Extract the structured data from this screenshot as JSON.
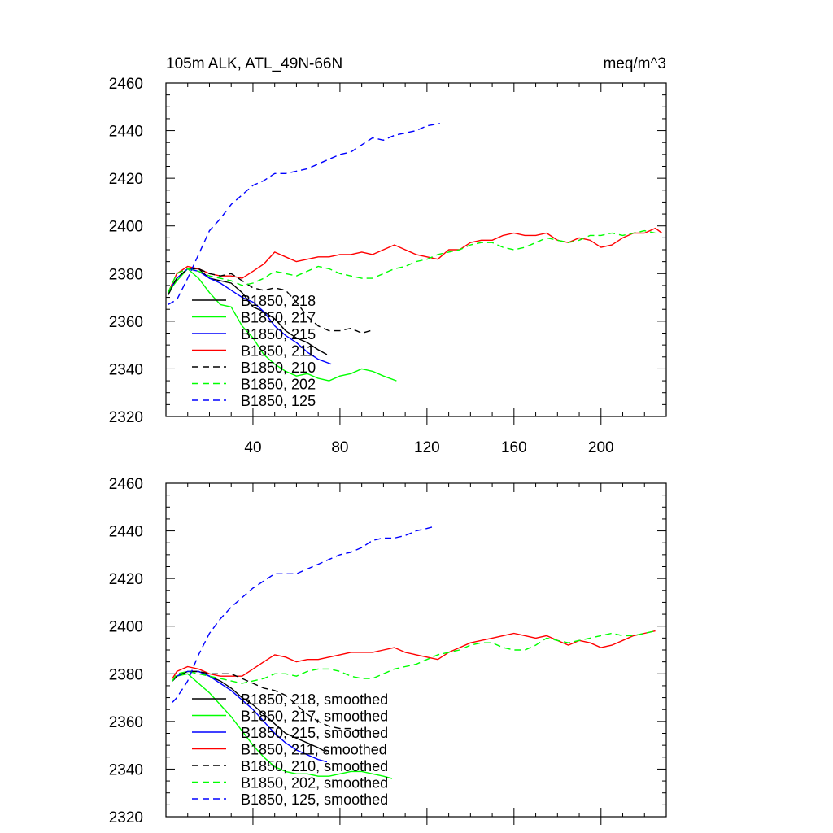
{
  "chart_data": [
    {
      "type": "line",
      "title": "105m ALK, ATL_49N-66N",
      "units": "meq/m^3",
      "xlabel": "",
      "ylabel": "",
      "xlim": [
        0,
        230
      ],
      "ylim": [
        2320,
        2460
      ],
      "xticks": [
        "40",
        "80",
        "120",
        "160",
        "200"
      ],
      "yticks": [
        "2460",
        "2440",
        "2420",
        "2400",
        "2380",
        "2360",
        "2340",
        "2320"
      ],
      "legend_position": "lower-left",
      "series": [
        {
          "name": "B1850, 218",
          "color": "#000000",
          "dash": "solid",
          "x": [
            1,
            5,
            10,
            15,
            20,
            25,
            30,
            35,
            40,
            45,
            50,
            55,
            60,
            65,
            70,
            74
          ],
          "y": [
            2371,
            2378,
            2382,
            2382,
            2378,
            2377,
            2376,
            2372,
            2366,
            2364,
            2361,
            2356,
            2353,
            2351,
            2348,
            2346
          ]
        },
        {
          "name": "B1850, 217",
          "color": "#00ff00",
          "dash": "solid",
          "x": [
            1,
            5,
            10,
            15,
            20,
            25,
            30,
            35,
            40,
            45,
            50,
            55,
            60,
            65,
            70,
            75,
            80,
            85,
            90,
            95,
            100,
            106
          ],
          "y": [
            2372,
            2377,
            2382,
            2378,
            2372,
            2367,
            2366,
            2358,
            2353,
            2346,
            2342,
            2339,
            2337,
            2338,
            2336,
            2335,
            2337,
            2338,
            2340,
            2339,
            2337,
            2335
          ]
        },
        {
          "name": "B1850, 215",
          "color": "#0000ff",
          "dash": "solid",
          "x": [
            1,
            5,
            10,
            15,
            20,
            25,
            30,
            35,
            40,
            45,
            50,
            55,
            60,
            65,
            70,
            76
          ],
          "y": [
            2372,
            2378,
            2382,
            2381,
            2378,
            2376,
            2373,
            2370,
            2368,
            2364,
            2358,
            2354,
            2351,
            2347,
            2344,
            2342
          ]
        },
        {
          "name": "B1850, 211",
          "color": "#ff0000",
          "dash": "solid",
          "x": [
            1,
            5,
            10,
            15,
            20,
            25,
            30,
            35,
            40,
            45,
            50,
            55,
            60,
            65,
            70,
            75,
            80,
            85,
            90,
            95,
            100,
            105,
            110,
            115,
            120,
            125,
            130,
            135,
            140,
            145,
            150,
            155,
            160,
            165,
            170,
            175,
            180,
            185,
            190,
            195,
            200,
            205,
            210,
            215,
            220,
            225,
            228
          ],
          "y": [
            2372,
            2380,
            2383,
            2382,
            2380,
            2379,
            2379,
            2378,
            2381,
            2384,
            2389,
            2387,
            2385,
            2386,
            2387,
            2387,
            2388,
            2388,
            2389,
            2388,
            2390,
            2392,
            2390,
            2388,
            2387,
            2386,
            2390,
            2390,
            2393,
            2394,
            2394,
            2396,
            2397,
            2396,
            2396,
            2397,
            2394,
            2393,
            2395,
            2394,
            2391,
            2392,
            2395,
            2397,
            2397,
            2399,
            2397
          ]
        },
        {
          "name": "B1850, 210",
          "color": "#000000",
          "dash": "dashed",
          "x": [
            1,
            5,
            10,
            15,
            20,
            25,
            30,
            35,
            40,
            45,
            50,
            55,
            60,
            65,
            70,
            75,
            80,
            85,
            90,
            94
          ],
          "y": [
            2372,
            2378,
            2382,
            2382,
            2380,
            2379,
            2380,
            2377,
            2374,
            2373,
            2374,
            2373,
            2368,
            2362,
            2358,
            2356,
            2356,
            2357,
            2355,
            2356
          ]
        },
        {
          "name": "B1850, 202",
          "color": "#00ff00",
          "dash": "dashed",
          "x": [
            1,
            5,
            10,
            15,
            20,
            25,
            30,
            35,
            40,
            45,
            50,
            55,
            60,
            65,
            70,
            75,
            80,
            85,
            90,
            95,
            100,
            105,
            110,
            115,
            120,
            125,
            130,
            135,
            140,
            145,
            150,
            155,
            160,
            165,
            170,
            175,
            180,
            185,
            190,
            195,
            200,
            205,
            210,
            215,
            220,
            225
          ],
          "y": [
            2372,
            2380,
            2382,
            2381,
            2379,
            2378,
            2377,
            2375,
            2376,
            2378,
            2381,
            2380,
            2379,
            2381,
            2383,
            2382,
            2380,
            2379,
            2378,
            2378,
            2380,
            2382,
            2383,
            2385,
            2386,
            2388,
            2389,
            2390,
            2392,
            2393,
            2393,
            2391,
            2390,
            2391,
            2393,
            2395,
            2394,
            2393,
            2394,
            2396,
            2396,
            2397,
            2396,
            2397,
            2398,
            2397
          ]
        },
        {
          "name": "B1850, 125",
          "color": "#0000ff",
          "dash": "dashed",
          "x": [
            1,
            5,
            10,
            15,
            20,
            25,
            30,
            35,
            40,
            45,
            50,
            55,
            60,
            65,
            70,
            75,
            80,
            85,
            90,
            95,
            100,
            105,
            110,
            115,
            120,
            126
          ],
          "y": [
            2367,
            2369,
            2378,
            2388,
            2398,
            2403,
            2409,
            2413,
            2417,
            2419,
            2422,
            2422,
            2423,
            2424,
            2426,
            2428,
            2430,
            2431,
            2434,
            2437,
            2436,
            2438,
            2439,
            2440,
            2442,
            2443
          ]
        }
      ]
    },
    {
      "type": "line",
      "title": "",
      "xlabel": "",
      "ylabel": "",
      "xlim": [
        0,
        230
      ],
      "ylim": [
        2320,
        2460
      ],
      "yticks": [
        "2460",
        "2440",
        "2420",
        "2400",
        "2380",
        "2360",
        "2340",
        "2320"
      ],
      "legend_position": "lower-left",
      "series": [
        {
          "name": "B1850, 218, smoothed",
          "color": "#000000",
          "dash": "solid",
          "x": [
            3,
            5,
            10,
            15,
            20,
            25,
            30,
            35,
            40,
            45,
            50,
            55,
            60,
            65,
            70,
            74
          ],
          "y": [
            2377,
            2379,
            2381,
            2381,
            2379,
            2377,
            2374,
            2370,
            2367,
            2363,
            2359,
            2355,
            2353,
            2351,
            2349,
            2347
          ]
        },
        {
          "name": "B1850, 217, smoothed",
          "color": "#00ff00",
          "dash": "solid",
          "x": [
            3,
            5,
            10,
            15,
            20,
            25,
            30,
            35,
            40,
            45,
            50,
            55,
            60,
            65,
            70,
            75,
            80,
            85,
            90,
            95,
            100,
            104
          ],
          "y": [
            2377,
            2379,
            2380,
            2376,
            2372,
            2367,
            2362,
            2356,
            2350,
            2345,
            2341,
            2339,
            2338,
            2338,
            2337,
            2337,
            2338,
            2339,
            2339,
            2338,
            2337,
            2336
          ]
        },
        {
          "name": "B1850, 215, smoothed",
          "color": "#0000ff",
          "dash": "solid",
          "x": [
            3,
            5,
            10,
            15,
            20,
            25,
            30,
            35,
            40,
            45,
            50,
            55,
            60,
            65,
            70,
            74
          ],
          "y": [
            2377,
            2379,
            2381,
            2381,
            2379,
            2376,
            2373,
            2369,
            2365,
            2360,
            2355,
            2351,
            2348,
            2346,
            2344,
            2343
          ]
        },
        {
          "name": "B1850, 211, smoothed",
          "color": "#ff0000",
          "dash": "solid",
          "x": [
            3,
            5,
            10,
            15,
            20,
            25,
            30,
            35,
            40,
            45,
            50,
            55,
            60,
            65,
            70,
            75,
            80,
            85,
            90,
            95,
            100,
            105,
            110,
            115,
            120,
            125,
            130,
            135,
            140,
            145,
            150,
            155,
            160,
            165,
            170,
            175,
            180,
            185,
            190,
            195,
            200,
            205,
            210,
            215,
            220,
            225
          ],
          "y": [
            2378,
            2381,
            2383,
            2382,
            2380,
            2379,
            2379,
            2379,
            2382,
            2385,
            2388,
            2387,
            2385,
            2386,
            2386,
            2387,
            2388,
            2389,
            2389,
            2389,
            2390,
            2391,
            2389,
            2388,
            2387,
            2386,
            2389,
            2391,
            2393,
            2394,
            2395,
            2396,
            2397,
            2396,
            2395,
            2396,
            2394,
            2392,
            2394,
            2393,
            2391,
            2392,
            2394,
            2396,
            2397,
            2398
          ]
        },
        {
          "name": "B1850, 210, smoothed",
          "color": "#000000",
          "dash": "dashed",
          "x": [
            3,
            5,
            10,
            15,
            20,
            25,
            30,
            35,
            40,
            45,
            50,
            55,
            60,
            65,
            70,
            75,
            80,
            85,
            90,
            93
          ],
          "y": [
            2377,
            2379,
            2381,
            2381,
            2380,
            2380,
            2380,
            2378,
            2376,
            2374,
            2373,
            2371,
            2367,
            2363,
            2360,
            2358,
            2357,
            2357,
            2356,
            2356
          ]
        },
        {
          "name": "B1850, 202, smoothed",
          "color": "#00ff00",
          "dash": "dashed",
          "x": [
            3,
            5,
            10,
            15,
            20,
            25,
            30,
            35,
            40,
            45,
            50,
            55,
            60,
            65,
            70,
            75,
            80,
            85,
            90,
            95,
            100,
            105,
            110,
            115,
            120,
            125,
            130,
            135,
            140,
            145,
            150,
            155,
            160,
            165,
            170,
            175,
            180,
            185,
            190,
            195,
            200,
            205,
            210,
            215,
            220,
            225
          ],
          "y": [
            2377,
            2380,
            2381,
            2380,
            2379,
            2378,
            2377,
            2376,
            2377,
            2378,
            2380,
            2380,
            2379,
            2381,
            2382,
            2382,
            2381,
            2379,
            2378,
            2378,
            2380,
            2382,
            2383,
            2384,
            2386,
            2388,
            2389,
            2390,
            2392,
            2393,
            2393,
            2391,
            2390,
            2390,
            2392,
            2395,
            2394,
            2393,
            2394,
            2395,
            2396,
            2397,
            2396,
            2396,
            2397,
            2398
          ]
        },
        {
          "name": "B1850, 125, smoothed",
          "color": "#0000ff",
          "dash": "dashed",
          "x": [
            3,
            5,
            10,
            15,
            20,
            25,
            30,
            35,
            40,
            45,
            50,
            55,
            60,
            65,
            70,
            75,
            80,
            85,
            90,
            95,
            100,
            105,
            110,
            115,
            120,
            124
          ],
          "y": [
            2368,
            2370,
            2377,
            2388,
            2397,
            2403,
            2408,
            2412,
            2416,
            2419,
            2422,
            2422,
            2422,
            2424,
            2426,
            2428,
            2430,
            2431,
            2433,
            2436,
            2437,
            2437,
            2438,
            2440,
            2441,
            2442
          ]
        }
      ]
    }
  ]
}
